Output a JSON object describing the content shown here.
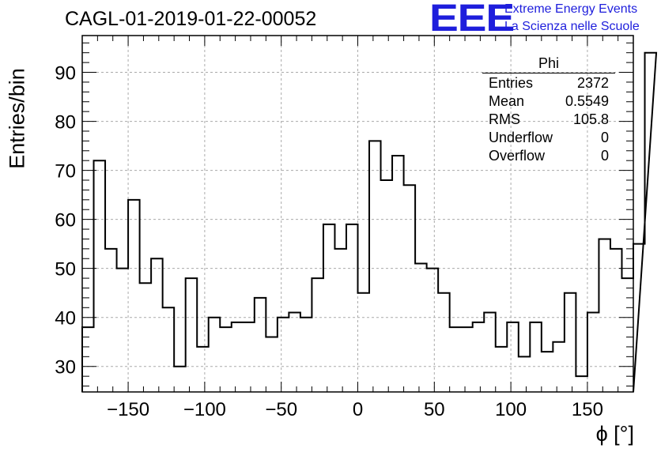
{
  "title": "CAGL-01-2019-01-22-00052",
  "logo": {
    "mark": "EEE",
    "line1": "Extreme Energy Events",
    "line2": "La Scienza nelle Scuole",
    "color": "#1e1edc"
  },
  "stats": {
    "name": "Phi",
    "rows": [
      {
        "label": "Entries",
        "value": "2372"
      },
      {
        "label": "Mean",
        "value": "0.5549"
      },
      {
        "label": "RMS",
        "value": "105.8"
      },
      {
        "label": "Underflow",
        "value": "0"
      },
      {
        "label": "Overflow",
        "value": "0"
      }
    ]
  },
  "chart_data": {
    "type": "bar",
    "title": "CAGL-01-2019-01-22-00052",
    "xlabel": "ϕ [°]",
    "ylabel": "Entries/bin",
    "xlim": [
      -180,
      180
    ],
    "ylim": [
      24.8,
      97.5
    ],
    "bin_width": 7.5,
    "x_ticks": [
      -150,
      -100,
      -50,
      0,
      50,
      100,
      150
    ],
    "x_tick_labels": [
      "−150",
      "−100",
      "−50",
      "0",
      "50",
      "100",
      "150"
    ],
    "y_ticks": [
      30,
      40,
      50,
      60,
      70,
      80,
      90
    ],
    "grid": true,
    "values": [
      38,
      72,
      54,
      50,
      64,
      47,
      52,
      42,
      30,
      48,
      34,
      40,
      38,
      39,
      39,
      44,
      36,
      40,
      41,
      40,
      48,
      59,
      54,
      59,
      45,
      76,
      68,
      73,
      67,
      51,
      50,
      45,
      38,
      38,
      39,
      41,
      34,
      39,
      32,
      39,
      33,
      35,
      45,
      28,
      41,
      56,
      54,
      48,
      55,
      94
    ],
    "colors": {
      "line": "#000000",
      "grid": "#aaaaaa"
    }
  }
}
